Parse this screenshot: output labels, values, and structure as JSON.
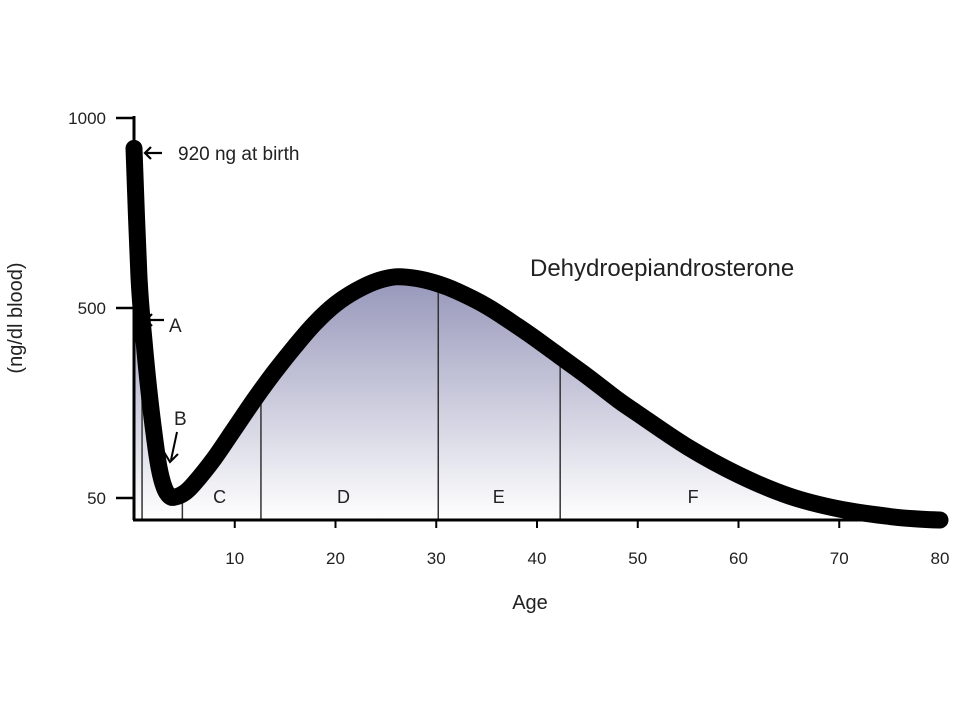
{
  "chart_data": {
    "type": "area",
    "title": "",
    "xlabel": "Age",
    "ylabel": "(ng/dl blood)",
    "xlim": [
      0,
      80
    ],
    "x_ticks": [
      10,
      20,
      30,
      40,
      50,
      60,
      70,
      80
    ],
    "y_ticks": [
      50,
      500,
      1000
    ],
    "x_tick_labels": [
      "10",
      "20",
      "30",
      "40",
      "50",
      "60",
      "70",
      "80"
    ],
    "y_tick_labels": [
      "50",
      "500",
      "1000"
    ],
    "grid": false,
    "legend": "none",
    "series": [
      {
        "name": "Dehydroepiandrosterone",
        "x": [
          0,
          0.5,
          1,
          1.5,
          2,
          2.5,
          3,
          3.5,
          4,
          5,
          6,
          8,
          10,
          12,
          14,
          16,
          18,
          20,
          22,
          24,
          26,
          28,
          30,
          32,
          35,
          38,
          40,
          42,
          45,
          48,
          50,
          55,
          60,
          65,
          70,
          75,
          78,
          80
        ],
        "y": [
          920,
          580,
          420,
          300,
          200,
          120,
          75,
          55,
          52,
          62,
          85,
          145,
          215,
          285,
          350,
          410,
          465,
          510,
          545,
          570,
          582,
          578,
          565,
          545,
          505,
          458,
          425,
          390,
          338,
          283,
          250,
          170,
          105,
          55,
          25,
          8,
          2,
          0
        ],
        "color": "#000000"
      }
    ],
    "dividers_x": [
      0.8,
      4.8,
      12.6,
      30.2,
      42.3
    ],
    "regions": [
      {
        "label": "C",
        "x": 8.5
      },
      {
        "label": "D",
        "x": 20.8
      },
      {
        "label": "E",
        "x": 36.2
      },
      {
        "label": "F",
        "x": 55.5
      }
    ],
    "annotations": [
      {
        "text": "920 ng at birth",
        "x": 0,
        "y": 920
      },
      {
        "text": "A",
        "x": 0,
        "y": 500
      },
      {
        "text": "B",
        "x": 3.5,
        "y": 52
      }
    ],
    "fill_gradient": [
      "#5e5e95",
      "#ffffff"
    ]
  }
}
